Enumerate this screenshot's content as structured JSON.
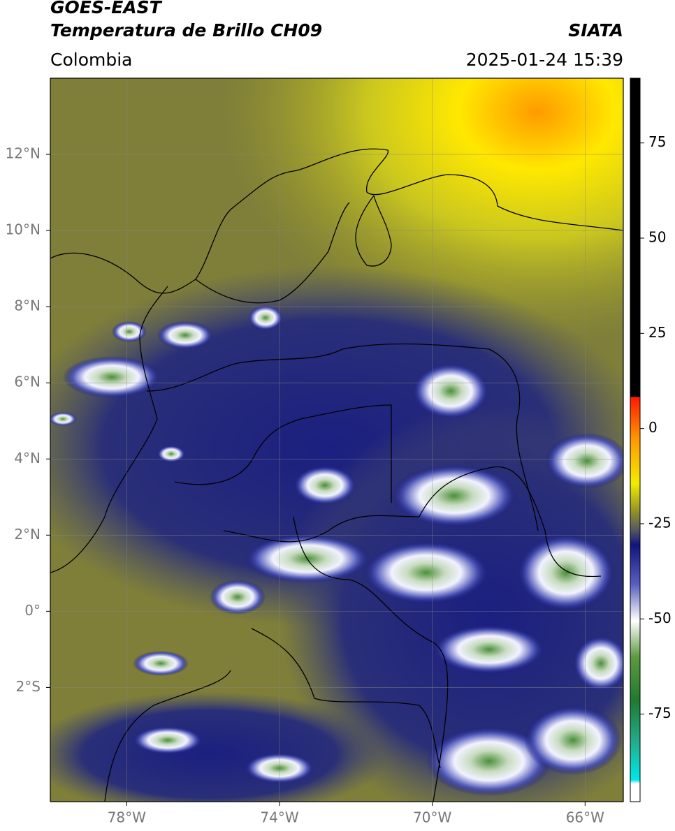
{
  "header": {
    "title": "GOES-EAST",
    "subtitle": "Temperatura de Brillo CH09",
    "source": "SIATA",
    "region": "Colombia",
    "timestamp": "2025-01-24 15:39"
  },
  "map": {
    "xlim": [
      -80,
      -65
    ],
    "ylim": [
      -5,
      14
    ],
    "xticks": [
      {
        "value": -78,
        "label": "78°W"
      },
      {
        "value": -74,
        "label": "74°W"
      },
      {
        "value": -70,
        "label": "70°W"
      },
      {
        "value": -66,
        "label": "66°W"
      }
    ],
    "yticks": [
      {
        "value": 12,
        "label": "12°N"
      },
      {
        "value": 10,
        "label": "10°N"
      },
      {
        "value": 8,
        "label": "8°N"
      },
      {
        "value": 6,
        "label": "6°N"
      },
      {
        "value": 4,
        "label": "4°N"
      },
      {
        "value": 2,
        "label": "2°N"
      },
      {
        "value": 0,
        "label": "0°"
      },
      {
        "value": -2,
        "label": "2°S"
      }
    ],
    "grid": true
  },
  "colorbar": {
    "lim": [
      -98,
      92
    ],
    "ticks": [
      75,
      50,
      25,
      0,
      -25,
      -50,
      -75
    ]
  }
}
